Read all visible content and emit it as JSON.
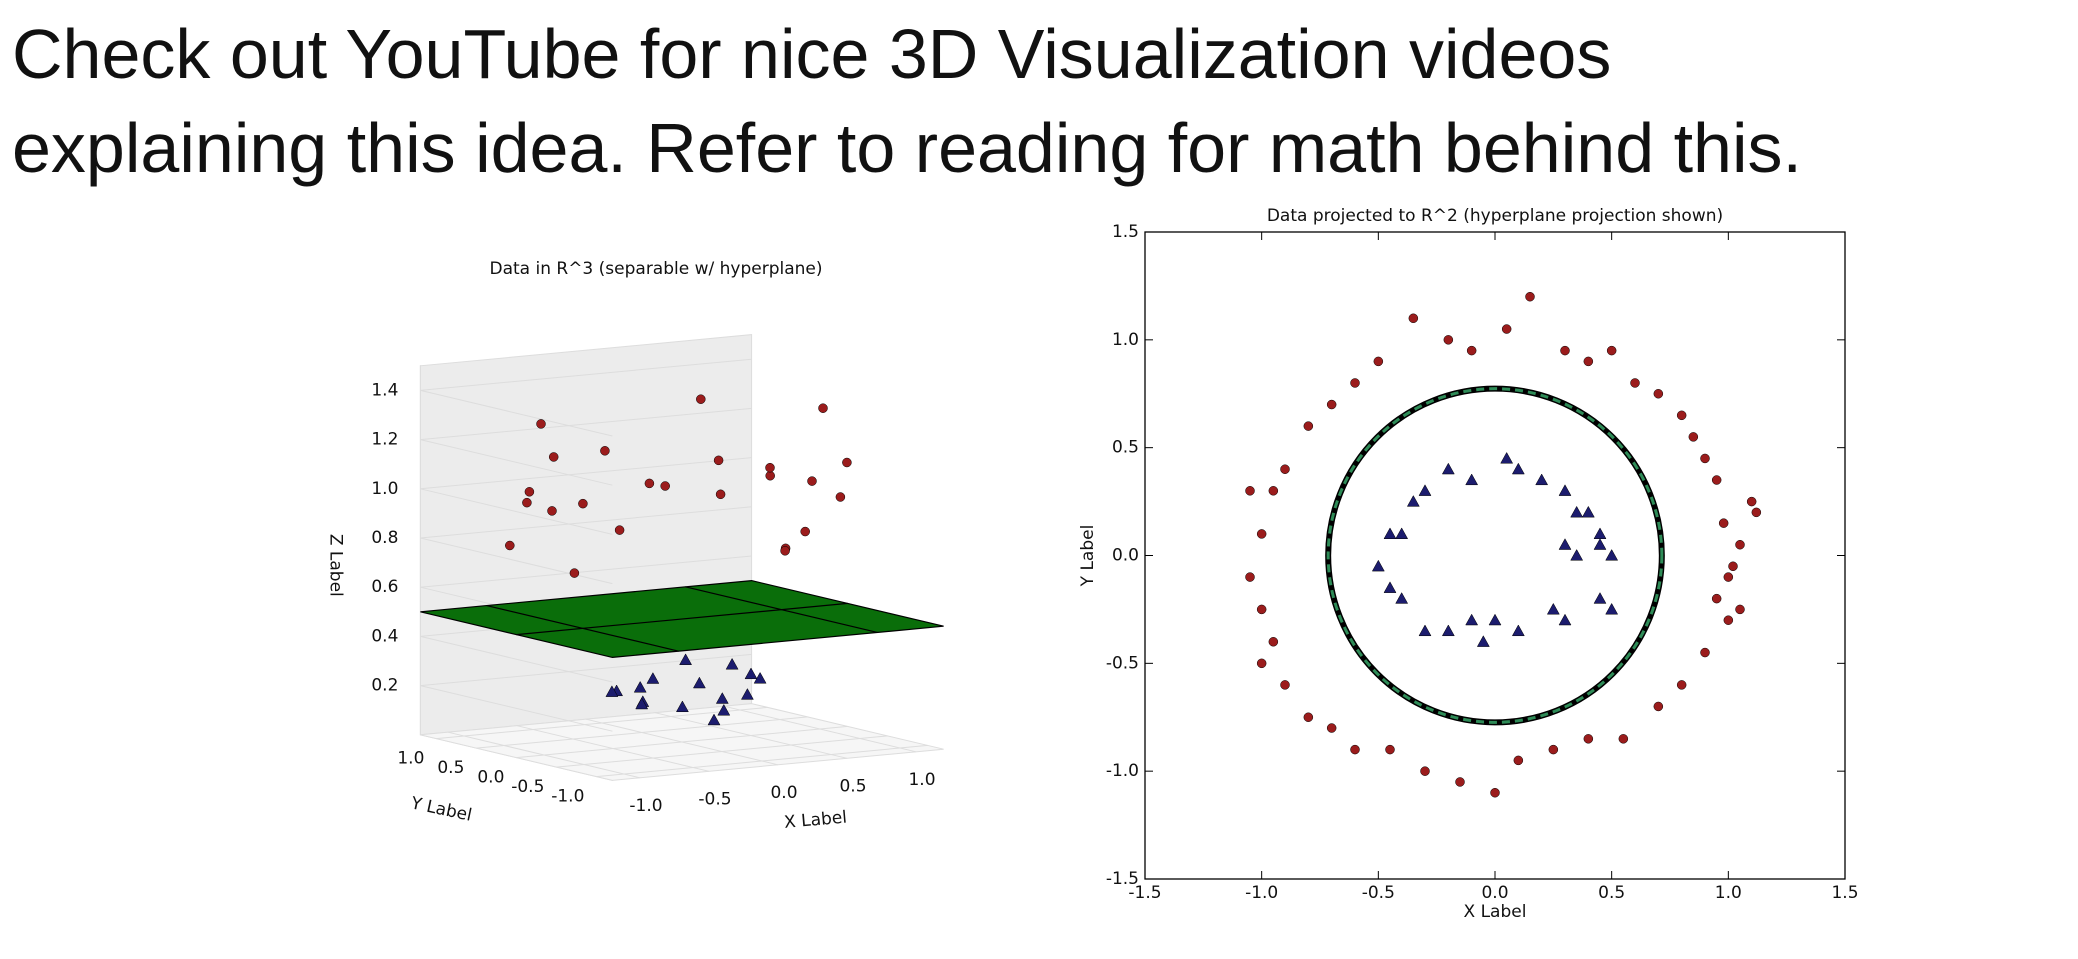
{
  "heading": [
    "Check out YouTube for nice 3D Visualization videos",
    "explaining this idea. Refer to reading for math behind this."
  ],
  "chart_data": [
    {
      "type": "scatter3d",
      "title": "Data in R^3 (separable w/ hyperplane)",
      "x_label": "X Label",
      "y_label": "Y Label",
      "z_label": "Z Label",
      "xticks": [
        {
          "value": -1,
          "label": "-1.0"
        },
        -0.5,
        {
          "value": 0,
          "label": "0.0"
        },
        0.5,
        {
          "value": 1,
          "label": "1.0"
        }
      ],
      "yticks": [
        {
          "value": 1,
          "label": "1.0"
        },
        0.5,
        {
          "value": 0,
          "label": "0.0"
        },
        -0.5,
        {
          "value": -1,
          "label": "-1.0"
        }
      ],
      "zticks": [
        0.2,
        0.4,
        0.6,
        0.8,
        {
          "value": 1,
          "label": "1.0"
        },
        1.2,
        1.4
      ],
      "zlim": [
        0,
        1.5
      ],
      "plane_z": 0.5,
      "plane_color": "#0a6e0a",
      "series": [
        {
          "color": "#9b1c1c",
          "marker": "circle",
          "x": [
            1.0,
            0.9,
            0.7,
            0.4,
            0.05,
            -0.35,
            -0.7,
            -0.95,
            -1.0,
            -0.95,
            -0.7,
            -0.3,
            0.0,
            0.4,
            0.8,
            1.05,
            0.6,
            -0.5,
            0.2,
            -0.9,
            0.95,
            -0.8,
            0.5,
            -0.2
          ],
          "y": [
            0.1,
            0.45,
            0.75,
            0.9,
            1.05,
            1.0,
            0.7,
            0.3,
            -0.1,
            -0.4,
            -0.8,
            -1.0,
            -1.1,
            -0.85,
            -0.6,
            -0.25,
            0.8,
            0.9,
            -0.95,
            0.6,
            0.35,
            -0.6,
            -0.9,
            1.0
          ],
          "z": [
            1.0,
            1.0,
            1.05,
            0.95,
            1.1,
            1.1,
            1.0,
            1.0,
            1.0,
            1.05,
            1.15,
            1.1,
            1.2,
            0.9,
            1.0,
            1.1,
            1.3,
            1.25,
            0.85,
            0.8,
            0.7,
            0.95,
            1.4,
            0.62
          ]
        },
        {
          "color": "#1c1c6e",
          "marker": "triangle",
          "x": [
            0.5,
            0.3,
            0.05,
            -0.3,
            -0.45,
            -0.4,
            -0.2,
            0.1,
            0.3,
            0.45,
            0.35,
            -0.1,
            0.2,
            -0.35,
            0.0,
            0.45
          ],
          "y": [
            0.0,
            0.3,
            0.45,
            0.3,
            0.1,
            -0.2,
            -0.35,
            -0.35,
            -0.3,
            -0.2,
            0.1,
            0.35,
            0.3,
            -0.1,
            -0.4,
            0.15
          ],
          "z": [
            0.25,
            0.2,
            0.22,
            0.2,
            0.22,
            0.2,
            0.18,
            0.15,
            0.2,
            0.25,
            0.15,
            0.2,
            0.3,
            0.18,
            0.12,
            0.28
          ]
        }
      ]
    },
    {
      "type": "scatter",
      "title": "Data projected to R^2 (hyperplane projection shown)",
      "x_label": "X Label",
      "y_label": "Y Label",
      "xlim": [
        -1.5,
        1.5
      ],
      "ylim": [
        -1.5,
        1.5
      ],
      "xticks": [
        -1.5,
        {
          "value": -1,
          "label": "-1.0"
        },
        -0.5,
        {
          "value": 0,
          "label": "0.0"
        },
        0.5,
        {
          "value": 1,
          "label": "1.0"
        },
        1.5
      ],
      "yticks": [
        -1.5,
        {
          "value": -1,
          "label": "-1.0"
        },
        -0.5,
        {
          "value": 0,
          "label": "0.0"
        },
        0.5,
        {
          "value": 1,
          "label": "1.0"
        },
        1.5
      ],
      "boundary_radius": 0.715,
      "boundary_color": "#2e8b57",
      "series": [
        {
          "color": "#9b1c1c",
          "marker": "circle",
          "x": [
            1.12,
            1.1,
            1.05,
            1.0,
            1.02,
            0.98,
            0.95,
            0.9,
            0.85,
            0.8,
            0.7,
            0.6,
            0.5,
            0.4,
            0.3,
            0.15,
            0.05,
            -0.1,
            -0.2,
            -0.35,
            -0.5,
            -0.6,
            -0.7,
            -0.8,
            -0.9,
            -0.95,
            -1.05,
            -1.0,
            -1.05,
            -1.0,
            -0.95,
            -1.0,
            -0.9,
            -0.8,
            -0.7,
            -0.6,
            -0.45,
            -0.3,
            -0.15,
            0.0,
            0.1,
            0.25,
            0.4,
            0.55,
            0.7,
            0.8,
            0.9,
            1.0,
            0.95,
            1.05
          ],
          "y": [
            0.2,
            0.25,
            0.05,
            -0.1,
            -0.05,
            0.15,
            0.35,
            0.45,
            0.55,
            0.65,
            0.75,
            0.8,
            0.95,
            0.9,
            0.95,
            1.2,
            1.05,
            0.95,
            1.0,
            1.1,
            0.9,
            0.8,
            0.7,
            0.6,
            0.4,
            0.3,
            0.3,
            0.1,
            -0.1,
            -0.25,
            -0.4,
            -0.5,
            -0.6,
            -0.75,
            -0.8,
            -0.9,
            -0.9,
            -1.0,
            -1.05,
            -1.1,
            -0.95,
            -0.9,
            -0.85,
            -0.85,
            -0.7,
            -0.6,
            -0.45,
            -0.3,
            -0.2,
            -0.25
          ]
        },
        {
          "color": "#1c1c6e",
          "marker": "triangle",
          "x": [
            0.5,
            0.45,
            0.4,
            0.3,
            0.35,
            0.2,
            0.1,
            0.05,
            -0.1,
            -0.2,
            -0.3,
            -0.35,
            -0.45,
            -0.4,
            -0.5,
            -0.45,
            -0.4,
            -0.3,
            -0.2,
            -0.1,
            0.0,
            0.1,
            0.25,
            0.3,
            0.45,
            0.5,
            0.35,
            0.3,
            0.45,
            -0.05
          ],
          "y": [
            0.0,
            0.1,
            0.2,
            0.3,
            0.2,
            0.35,
            0.4,
            0.45,
            0.35,
            0.4,
            0.3,
            0.25,
            0.1,
            0.1,
            -0.05,
            -0.15,
            -0.2,
            -0.35,
            -0.35,
            -0.3,
            -0.3,
            -0.35,
            -0.25,
            -0.3,
            -0.2,
            -0.25,
            0.0,
            0.05,
            0.05,
            -0.4
          ]
        }
      ]
    }
  ]
}
